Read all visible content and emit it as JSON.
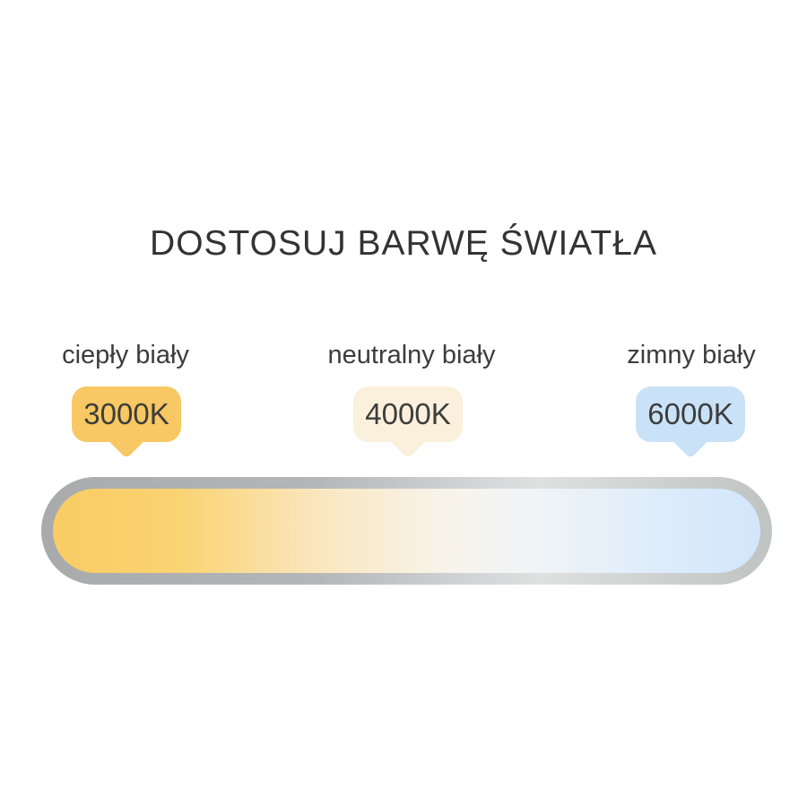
{
  "title": "DOSTOSUJ BARWĘ ŚWIATŁA",
  "temperatures": [
    {
      "label": "ciepły biały",
      "kelvin": "3000K",
      "badge_color": "#f7c863"
    },
    {
      "label": "neutralny biały",
      "kelvin": "4000K",
      "badge_color": "#faf0dc"
    },
    {
      "label": "zimny biały",
      "kelvin": "6000K",
      "badge_color": "#c9e2f8"
    }
  ],
  "bar": {
    "fill_gradient": [
      "#f9cc64 0%",
      "#fad373 18%",
      "#f9e7c0 38%",
      "#f8f3e8 54%",
      "#f2f5f6 66%",
      "#ddecfb 86%",
      "#d2e6fb 100%"
    ],
    "border_gradient": [
      "#a8aaac 0%",
      "#b4b6b8 38%",
      "#dfe1e1 68%",
      "#bfc3c1 100%"
    ],
    "text_color": "#3d3d3d"
  }
}
